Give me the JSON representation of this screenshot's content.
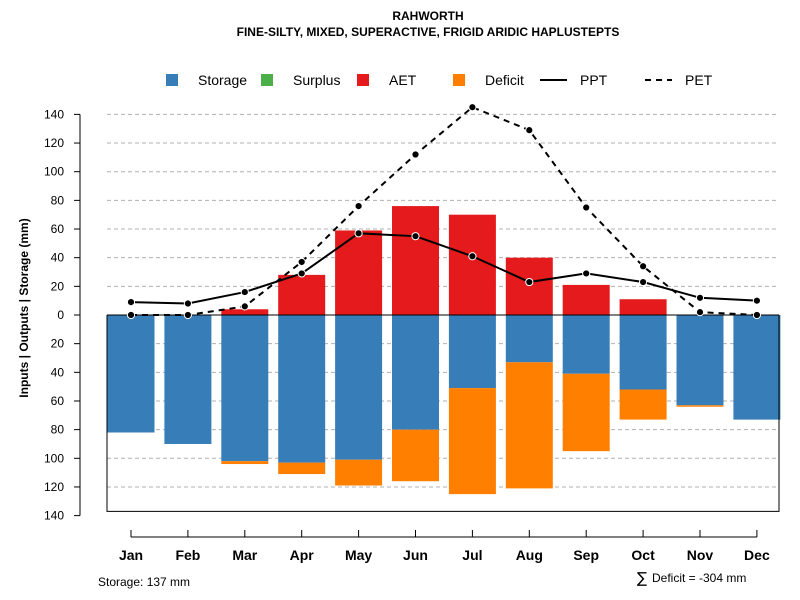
{
  "chart_data": {
    "type": "bar",
    "title": "RAHWORTH",
    "subtitle": "FINE-SILTY, MIXED, SUPERACTIVE, FRIGID ARIDIC HAPLUSTEPTS",
    "ylabel": "Inputs | Outputs | Storage    (mm)",
    "xlabel": "",
    "categories": [
      "Jan",
      "Feb",
      "Mar",
      "Apr",
      "May",
      "Jun",
      "Jul",
      "Aug",
      "Sep",
      "Oct",
      "Nov",
      "Dec"
    ],
    "ylim": [
      -140,
      150
    ],
    "yticks": [
      140,
      120,
      100,
      80,
      60,
      40,
      20,
      0,
      -20,
      -40,
      -60,
      -80,
      -100,
      -120,
      -140
    ],
    "ytick_labels": [
      "140",
      "120",
      "100",
      "80",
      "60",
      "40",
      "20",
      "0",
      "20",
      "40",
      "60",
      "80",
      "100",
      "120",
      "140"
    ],
    "grid": true,
    "legend": [
      {
        "name": "Storage",
        "kind": "square",
        "color": "#377EB8"
      },
      {
        "name": "Surplus",
        "kind": "square",
        "color": "#4DAF4A"
      },
      {
        "name": "AET",
        "kind": "square",
        "color": "#E41A1C"
      },
      {
        "name": "Deficit",
        "kind": "square",
        "color": "#FF7F00"
      },
      {
        "name": "PPT",
        "kind": "solid-line",
        "color": "#000000"
      },
      {
        "name": "PET",
        "kind": "dashed-line",
        "color": "#000000"
      }
    ],
    "series": [
      {
        "name": "AET",
        "color": "#E41A1C",
        "values": [
          0,
          0,
          4,
          28,
          59,
          76,
          70,
          40,
          21,
          11,
          0,
          0
        ]
      },
      {
        "name": "Storage",
        "color": "#377EB8",
        "values": [
          82,
          90,
          102,
          103,
          101,
          80,
          51,
          33,
          41,
          52,
          63,
          73
        ]
      },
      {
        "name": "Deficit",
        "color": "#FF7F00",
        "values": [
          0,
          0,
          2,
          8,
          18,
          36,
          74,
          88,
          54,
          21,
          1,
          0
        ]
      },
      {
        "name": "Surplus",
        "color": "#4DAF4A",
        "values": [
          0,
          0,
          0,
          0,
          0,
          0,
          0,
          0,
          0,
          0,
          0,
          0
        ]
      },
      {
        "name": "PPT",
        "color": "#000000",
        "values": [
          9,
          8,
          16,
          29,
          57,
          55,
          41,
          23,
          29,
          23,
          12,
          10
        ]
      },
      {
        "name": "PET",
        "color": "#000000",
        "values": [
          0,
          0,
          6,
          37,
          76,
          112,
          145,
          129,
          75,
          34,
          2,
          0
        ]
      }
    ],
    "storage_capacity": 137,
    "notes": {
      "storage": "Storage: 137 mm",
      "deficit": "Deficit = -304 mm",
      "deficit_symbol": "∑"
    }
  }
}
